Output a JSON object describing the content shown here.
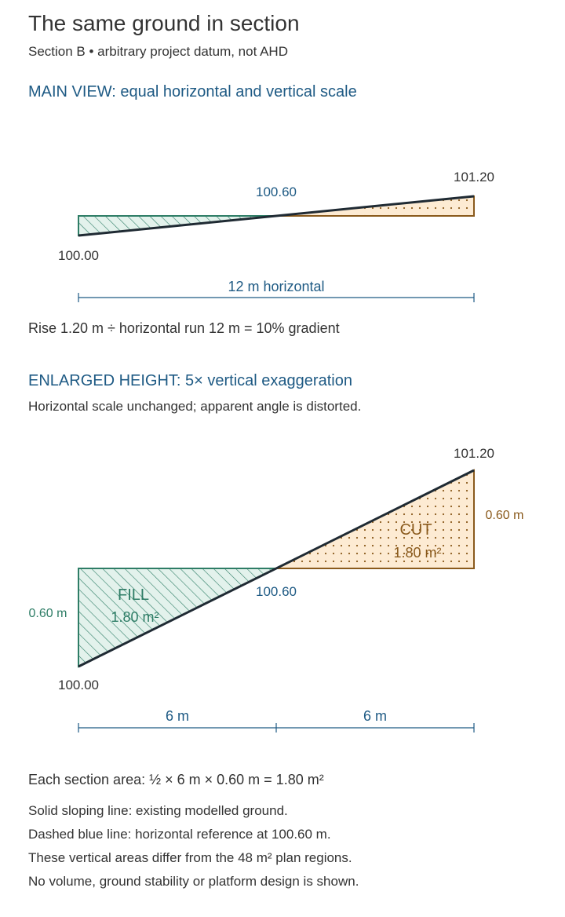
{
  "title": "The same ground in section",
  "subtitle": "Section B • arbitrary project datum, not AHD",
  "main_view": {
    "heading": "MAIN VIEW: equal horizontal and vertical scale",
    "left_level": "100.00",
    "mid_level": "100.60",
    "right_level": "101.20",
    "span_label": "12 m horizontal",
    "note": "Rise 1.20 m ÷ horizontal run 12 m = 10% gradient"
  },
  "enlarged_view": {
    "heading": "ENLARGED HEIGHT: 5× vertical exaggeration",
    "subheading": "Horizontal scale unchanged; apparent angle is distorted.",
    "left_level": "100.00",
    "mid_level": "100.60",
    "right_level": "101.20",
    "fill_label": "FILL",
    "fill_area": "1.80 m²",
    "cut_label": "CUT",
    "cut_area": "1.80 m²",
    "fill_depth": "0.60 m",
    "cut_depth": "0.60 m",
    "left_span": "6 m",
    "right_span": "6 m"
  },
  "area_formula": "Each section area: ½ × 6 m × 0.60 m = 1.80 m²",
  "notes": [
    "Solid sloping line: existing modelled ground.",
    "Dashed blue line: horizontal reference at 100.60 m.",
    "These vertical areas differ from the 48 m² plan regions.",
    "No volume, ground stability or platform design is shown."
  ],
  "colors": {
    "heading_blue": "#1e5a84",
    "fill_green": "#2e7d66",
    "fill_tint": "#e3f2ec",
    "cut_brown": "#8a5a1c",
    "cut_tint": "#fdebd3",
    "ground_line": "#1f2a33"
  }
}
